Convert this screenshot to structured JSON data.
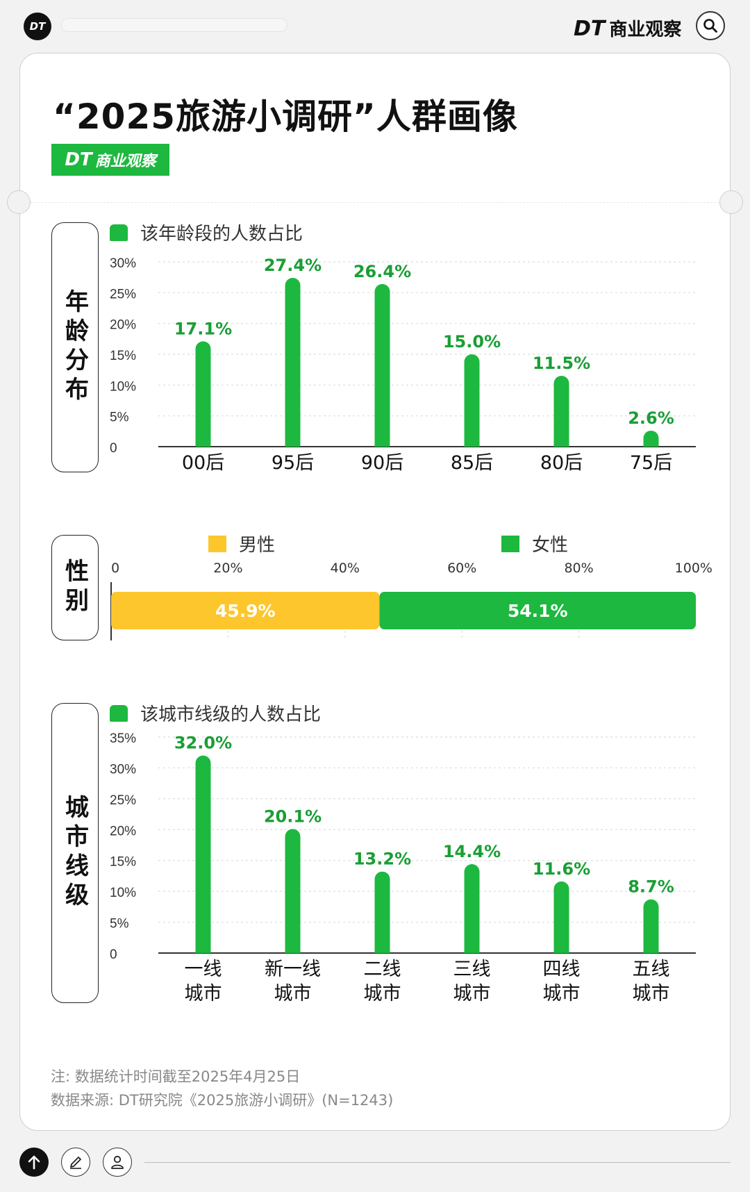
{
  "header": {
    "logo": "DT",
    "brand_dt": "DT",
    "brand_name": "商业观察",
    "search_icon": "search-icon"
  },
  "title": "“2025旅游小调研”人群画像",
  "badge": {
    "dt": "DT",
    "name": "商业观察"
  },
  "colors": {
    "green": "#1db83f",
    "yellow": "#fdc62c",
    "label_green": "#1a9e35"
  },
  "sections": {
    "age": "年龄分布",
    "gender": "性别",
    "city": "城市线级"
  },
  "chart_data": [
    {
      "type": "bar",
      "legend": "该年龄段的人数占比",
      "categories": [
        "00后",
        "95后",
        "90后",
        "85后",
        "80后",
        "75后"
      ],
      "values": [
        17.1,
        27.4,
        26.4,
        15.0,
        11.5,
        2.6
      ],
      "value_labels": [
        "17.1%",
        "27.4%",
        "26.4%",
        "15.0%",
        "11.5%",
        "2.6%"
      ],
      "ylim": [
        0,
        30
      ],
      "yticks": [
        "0",
        "5%",
        "10%",
        "15%",
        "20%",
        "25%",
        "30%"
      ],
      "grid": true
    },
    {
      "type": "bar",
      "orientation": "horizontal-stacked",
      "series": [
        {
          "name": "男性",
          "value": 45.9,
          "label": "45.9%",
          "color": "#fdc62c"
        },
        {
          "name": "女性",
          "value": 54.1,
          "label": "54.1%",
          "color": "#1db83f"
        }
      ],
      "xlim": [
        0,
        100
      ],
      "xticks": [
        "0",
        "20%",
        "40%",
        "60%",
        "80%",
        "100%"
      ]
    },
    {
      "type": "bar",
      "legend": "该城市线级的人数占比",
      "categories": [
        [
          "一线",
          "城市"
        ],
        [
          "新一线",
          "城市"
        ],
        [
          "二线",
          "城市"
        ],
        [
          "三线",
          "城市"
        ],
        [
          "四线",
          "城市"
        ],
        [
          "五线",
          "城市"
        ]
      ],
      "values": [
        32.0,
        20.1,
        13.2,
        14.4,
        11.6,
        8.7
      ],
      "value_labels": [
        "32.0%",
        "20.1%",
        "13.2%",
        "14.4%",
        "11.6%",
        "8.7%"
      ],
      "ylim": [
        0,
        35
      ],
      "yticks": [
        "0",
        "5%",
        "10%",
        "15%",
        "20%",
        "25%",
        "30%",
        "35%"
      ],
      "grid": true
    }
  ],
  "footnotes": {
    "note": "注: 数据统计时间截至2025年4月25日",
    "source": "数据来源: DT研究院《2025旅游小调研》(N=1243)"
  },
  "bottom_bar": {
    "icons": [
      "arrow-up-icon",
      "pencil-icon",
      "user-icon"
    ]
  }
}
